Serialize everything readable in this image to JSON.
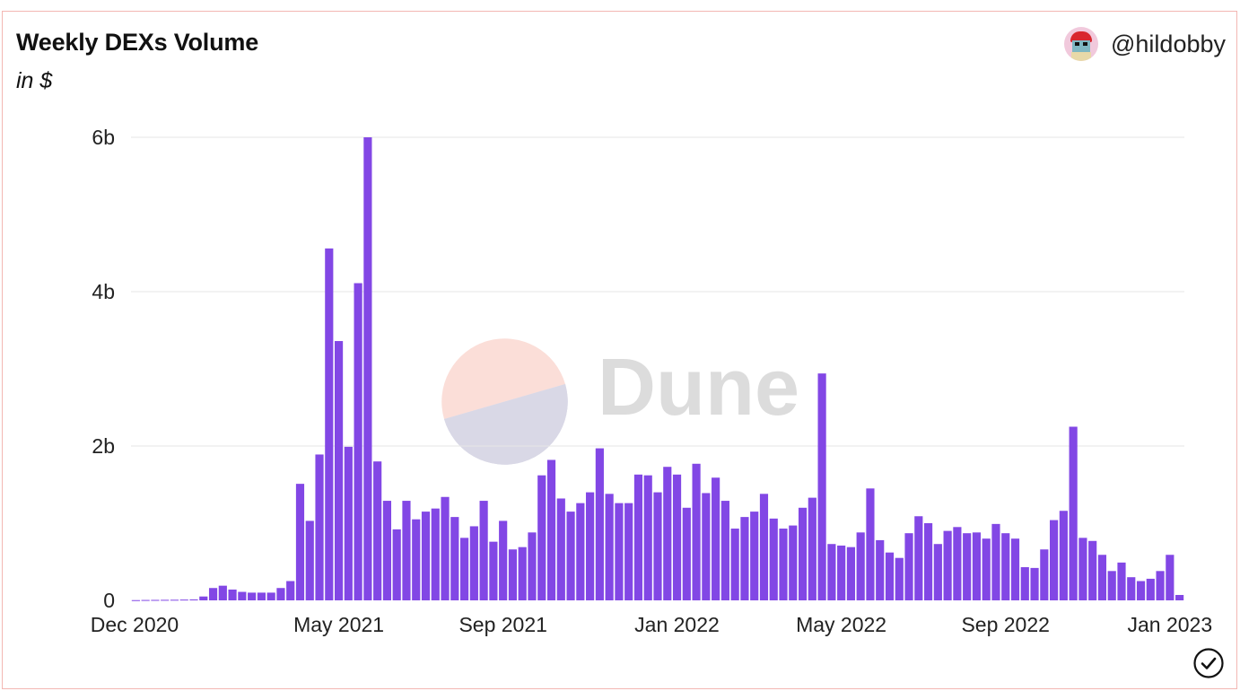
{
  "header": {
    "title": "Weekly DEXs Volume",
    "subtitle": "in $",
    "author_handle": "@hildobby",
    "avatar_icon": "pixel-avatar-icon"
  },
  "watermark": {
    "text": "Dune",
    "icon": "dune-logo-icon"
  },
  "colors": {
    "bar": "#8247e5",
    "grid": "#e6e6e6",
    "border": "#f3b7b3",
    "watermark_text": "#dcdcdc",
    "logo_top": "#fbded8",
    "logo_bottom": "#d9d8e6"
  },
  "status_icon": "checkmark-circle-icon",
  "chart_data": {
    "type": "bar",
    "title": "Weekly DEXs Volume",
    "subtitle": "in $",
    "xlabel": "",
    "ylabel": "",
    "ylim": [
      0,
      6000000000
    ],
    "y_ticks": [
      {
        "value": 0,
        "label": "0"
      },
      {
        "value": 2000000000,
        "label": "2b"
      },
      {
        "value": 4000000000,
        "label": "4b"
      },
      {
        "value": 6000000000,
        "label": "6b"
      }
    ],
    "x_ticks": [
      {
        "index": 0,
        "label": "Dec 2020"
      },
      {
        "index": 21,
        "label": "May 2021"
      },
      {
        "index": 38,
        "label": "Sep 2021"
      },
      {
        "index": 56,
        "label": "Jan 2022"
      },
      {
        "index": 73,
        "label": "May 2022"
      },
      {
        "index": 90,
        "label": "Sep 2022"
      },
      {
        "index": 107,
        "label": "Jan 2023"
      }
    ],
    "x_start": "Dec 2020",
    "interval": "weekly",
    "grid": true,
    "legend": "none",
    "values": [
      3000000,
      5000000,
      6000000,
      7000000,
      8000000,
      10000000,
      12000000,
      50000000,
      160000000,
      190000000,
      140000000,
      110000000,
      100000000,
      100000000,
      100000000,
      160000000,
      250000000,
      1510000000,
      1030000000,
      1890000000,
      4560000000,
      3360000000,
      1990000000,
      4110000000,
      6000000000,
      1800000000,
      1290000000,
      920000000,
      1290000000,
      1050000000,
      1150000000,
      1190000000,
      1340000000,
      1080000000,
      810000000,
      960000000,
      1290000000,
      760000000,
      1030000000,
      660000000,
      690000000,
      880000000,
      1620000000,
      1820000000,
      1320000000,
      1150000000,
      1260000000,
      1400000000,
      1970000000,
      1380000000,
      1260000000,
      1260000000,
      1630000000,
      1620000000,
      1400000000,
      1730000000,
      1630000000,
      1200000000,
      1770000000,
      1390000000,
      1590000000,
      1290000000,
      930000000,
      1080000000,
      1150000000,
      1380000000,
      1060000000,
      930000000,
      970000000,
      1200000000,
      1330000000,
      2940000000,
      730000000,
      710000000,
      690000000,
      880000000,
      1450000000,
      780000000,
      620000000,
      550000000,
      870000000,
      1090000000,
      1000000000,
      730000000,
      900000000,
      950000000,
      870000000,
      880000000,
      800000000,
      990000000,
      870000000,
      800000000,
      430000000,
      420000000,
      660000000,
      1040000000,
      1160000000,
      2250000000,
      810000000,
      770000000,
      590000000,
      380000000,
      490000000,
      300000000,
      250000000,
      280000000,
      380000000,
      590000000,
      70000000
    ]
  }
}
